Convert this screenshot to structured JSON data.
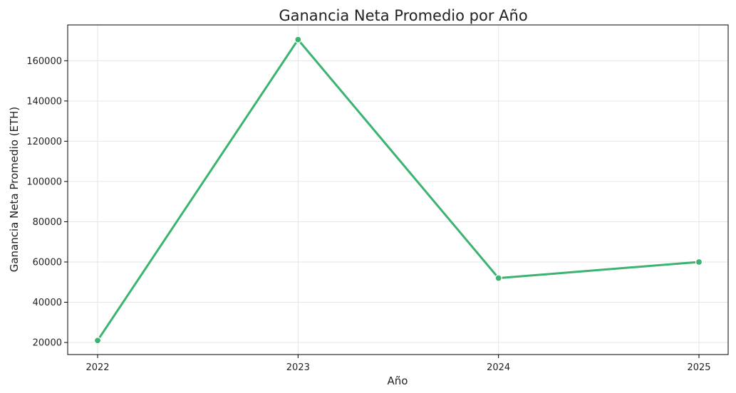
{
  "chart_data": {
    "type": "line",
    "title": "Ganancia Neta Promedio por Año",
    "xlabel": "Año",
    "ylabel": "Ganancia Neta Promedio (ETH)",
    "categories": [
      "2022",
      "2023",
      "2024",
      "2025"
    ],
    "series": [
      {
        "values": [
          21000,
          170500,
          52000,
          60000
        ],
        "color": "#3cb371"
      }
    ],
    "yticks": [
      20000,
      40000,
      60000,
      80000,
      100000,
      120000,
      140000,
      160000
    ],
    "ylim": [
      14000,
      177800
    ],
    "grid": true,
    "legend": "none"
  }
}
